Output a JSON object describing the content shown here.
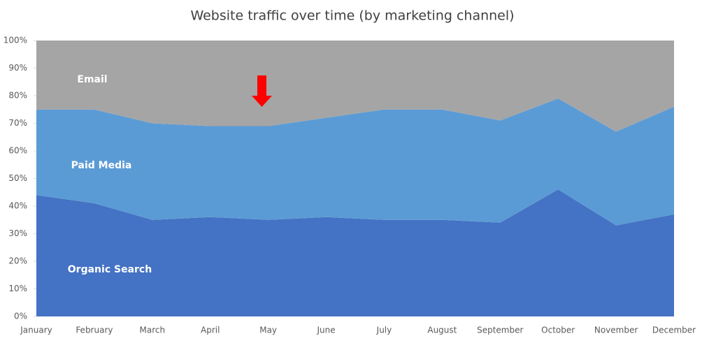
{
  "chart_data": {
    "type": "stacked-area-100",
    "title": "Website traffic over time (by marketing channel)",
    "categories": [
      "January",
      "February",
      "March",
      "April",
      "May",
      "June",
      "July",
      "August",
      "September",
      "October",
      "November",
      "December"
    ],
    "series": [
      {
        "name": "Organic Search",
        "color": "#4472c4",
        "values": [
          44,
          41,
          35,
          36,
          35,
          36,
          35,
          35,
          34,
          46,
          33,
          37
        ]
      },
      {
        "name": "Paid Media",
        "color": "#5b9bd5",
        "values": [
          31,
          34,
          35,
          33,
          34,
          36,
          40,
          40,
          37,
          33,
          34,
          39
        ]
      },
      {
        "name": "Email",
        "color": "#a5a5a5",
        "values": [
          25,
          25,
          30,
          31,
          31,
          28,
          25,
          25,
          29,
          21,
          33,
          24
        ]
      }
    ],
    "ylim": [
      0,
      100
    ],
    "yticks": [
      {
        "value": 0,
        "label": "0%"
      },
      {
        "value": 10,
        "label": "10%"
      },
      {
        "value": 20,
        "label": "20%"
      },
      {
        "value": 30,
        "label": "30%"
      },
      {
        "value": 40,
        "label": "40%"
      },
      {
        "value": 50,
        "label": "50%"
      },
      {
        "value": 60,
        "label": "60%"
      },
      {
        "value": 70,
        "label": "70%"
      },
      {
        "value": 80,
        "label": "80%"
      },
      {
        "value": 90,
        "label": "90%"
      },
      {
        "value": 100,
        "label": "100%"
      }
    ]
  }
}
